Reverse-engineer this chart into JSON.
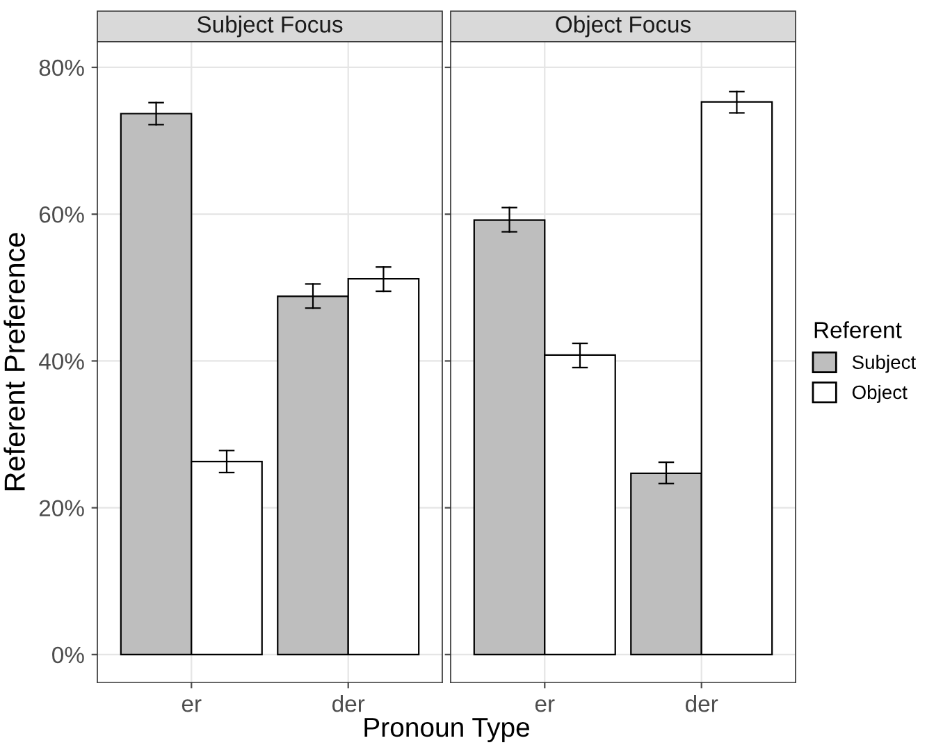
{
  "chart_data": [
    {
      "type": "bar",
      "title": "Subject Focus",
      "xlabel": "Pronoun Type",
      "ylabel": "Referent Preference",
      "categories": [
        "er",
        "der"
      ],
      "series": [
        {
          "color": "#bebebe",
          "values": [
            73.7,
            48.8
          ],
          "errors": [
            [
              72.2,
              75.2
            ],
            [
              47.2,
              50.5
            ]
          ]
        },
        {
          "color": "#ffffff",
          "values": [
            26.3,
            51.2
          ],
          "errors": [
            [
              24.8,
              27.8
            ],
            [
              49.5,
              52.8
            ]
          ]
        }
      ],
      "ylim": [
        -3.8,
        83.5
      ],
      "yticks": [
        {
          "value": 0,
          "label": "0%"
        },
        {
          "value": 20,
          "label": "20%"
        },
        {
          "value": 40,
          "label": "40%"
        },
        {
          "value": 60,
          "label": "60%"
        },
        {
          "value": 80,
          "label": "80%"
        }
      ],
      "grid": true,
      "legend": false
    },
    {
      "type": "bar",
      "title": "Object Focus",
      "categories": [
        "er",
        "der"
      ],
      "series": [
        {
          "name": "Subject",
          "color": "#bebebe",
          "values": [
            59.2,
            24.7
          ],
          "errors": [
            [
              57.6,
              60.9
            ],
            [
              23.3,
              26.2
            ]
          ]
        },
        {
          "name": "Object",
          "color": "#ffffff",
          "values": [
            40.8,
            75.3
          ],
          "errors": [
            [
              39.1,
              42.4
            ],
            [
              73.8,
              76.7
            ]
          ]
        }
      ],
      "ylim": [
        -3.8,
        83.5
      ],
      "yticks": [
        0,
        20,
        40,
        60,
        80
      ],
      "grid": true,
      "legend": "right",
      "legend_title": "Referent",
      "tick_labels": "x"
    }
  ]
}
